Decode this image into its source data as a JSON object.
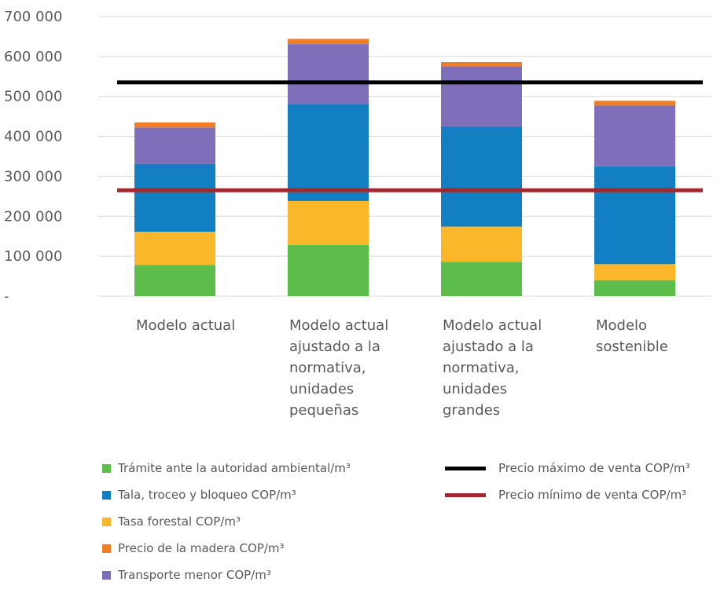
{
  "chart_data": {
    "type": "bar",
    "stacked": true,
    "categories": [
      [
        "Modelo actual"
      ],
      [
        "Modelo actual",
        "ajustado a la",
        "normativa,",
        "unidades",
        "pequeñas"
      ],
      [
        "Modelo actual",
        "ajustado a la",
        "normativa,",
        "unidades",
        "grandes"
      ],
      [
        "Modelo",
        "sostenible"
      ]
    ],
    "series": [
      {
        "name": "Trámite ante la autoridad ambiental/m³",
        "color": "#5cbd4a",
        "values": [
          78000,
          128000,
          86000,
          40000
        ]
      },
      {
        "name": "Tasa forestal COP/m³",
        "color": "#fbb72a",
        "values": [
          83000,
          110000,
          88000,
          40000
        ]
      },
      {
        "name": "Tala, troceo y bloqueo COP/m³",
        "color": "#137fc3",
        "values": [
          170000,
          243000,
          251000,
          245000
        ]
      },
      {
        "name": "Transporte menor COP/m³",
        "color": "#7f6eb9",
        "values": [
          91000,
          150000,
          150000,
          152000
        ]
      },
      {
        "name": "Precio de la madera COP/m³",
        "color": "#f07e26",
        "values": [
          13000,
          13000,
          11000,
          12000
        ]
      }
    ],
    "lines": [
      {
        "name": "Precio máximo de venta COP/m³",
        "color": "#000000",
        "value": 535000
      },
      {
        "name": "Precio mínimo de venta COP/m³",
        "color": "#a0282e",
        "value": 265000
      }
    ],
    "ylim": [
      0,
      700000
    ],
    "yticks": [
      {
        "value": 0,
        "label": "-"
      },
      {
        "value": 100000,
        "label": "100 000"
      },
      {
        "value": 200000,
        "label": "200 000"
      },
      {
        "value": 300000,
        "label": "300 000"
      },
      {
        "value": 400000,
        "label": "400 000"
      },
      {
        "value": 500000,
        "label": "500 000"
      },
      {
        "value": 600000,
        "label": "600 000"
      },
      {
        "value": 700000,
        "label": "700 000"
      }
    ],
    "grid": true,
    "legend_position": "bottom"
  },
  "legend": {
    "items": [
      {
        "label": "Trámite ante la autoridad ambiental/m³",
        "color": "#5cbd4a",
        "kind": "box"
      },
      {
        "label": "Tala, troceo y bloqueo COP/m³",
        "color": "#137fc3",
        "kind": "box"
      },
      {
        "label": "Tasa forestal COP/m³",
        "color": "#fbb72a",
        "kind": "box"
      },
      {
        "label": "Precio de la madera COP/m³",
        "color": "#f07e26",
        "kind": "box"
      },
      {
        "label": "Transporte menor COP/m³",
        "color": "#7f6eb9",
        "kind": "box"
      },
      {
        "label": "Precio máximo de venta COP/m³",
        "color": "#000000",
        "kind": "line"
      },
      {
        "label": "Precio mínimo de venta COP/m³",
        "color": "#a0282e",
        "kind": "line"
      }
    ]
  }
}
